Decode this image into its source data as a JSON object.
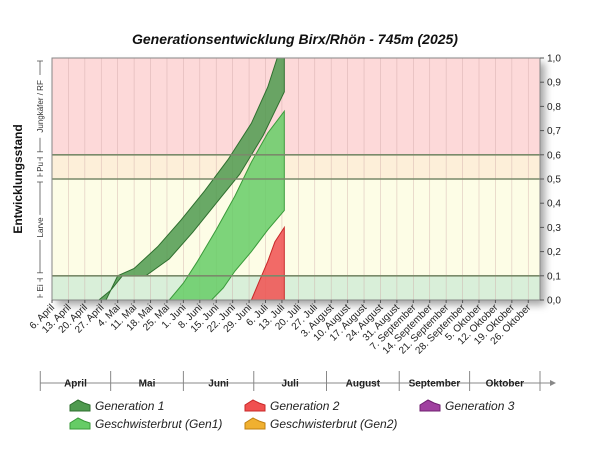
{
  "chart_data": {
    "type": "area",
    "title": "Generationsentwicklung Birx/Rhön - 745m (2025)",
    "ylabel": "Entwicklungsstand",
    "ylim": [
      0,
      1.0
    ],
    "yticks": [
      "0,0",
      "0,1",
      "0,2",
      "0,3",
      "0,4",
      "0,5",
      "0,6",
      "0,7",
      "0,8",
      "0,9",
      "1,0"
    ],
    "x_dates": [
      "6. April",
      "13. April",
      "20. April",
      "27. April",
      "4. Mai",
      "11. Mai",
      "18. Mai",
      "25. Mai",
      "1. Juni",
      "8. Juni",
      "15. Juni",
      "22. Juni",
      "29. Juni",
      "6. Juli",
      "13. Juli",
      "20. Juli",
      "27. Juli",
      "3. August",
      "10. August",
      "17. August",
      "24. August",
      "31. August",
      "7. September",
      "14. September",
      "21. September",
      "28. September",
      "5. Oktober",
      "12. Oktober",
      "19. Oktober",
      "26. Oktober"
    ],
    "months": [
      "April",
      "Mai",
      "Juni",
      "Juli",
      "August",
      "September",
      "Oktober"
    ],
    "stages": [
      {
        "label": "Ei",
        "from": 0.0,
        "to": 0.1,
        "color": "#d9efd9"
      },
      {
        "label": "Larve",
        "from": 0.1,
        "to": 0.5,
        "color": "#fdfde6"
      },
      {
        "label": "Pu",
        "from": 0.5,
        "to": 0.6,
        "color": "#fdefd9"
      },
      {
        "label": "Jungkäfer / RF",
        "from": 0.6,
        "to": 1.0,
        "color": "#fdd9d9"
      }
    ],
    "series": [
      {
        "name": "Generation 1",
        "color": "#4f9a4f",
        "edge": "#2f6f2f",
        "upper": [
          [
            23,
            0.0
          ],
          [
            28,
            0.1
          ],
          [
            35,
            0.13
          ],
          [
            45,
            0.22
          ],
          [
            55,
            0.33
          ],
          [
            65,
            0.45
          ],
          [
            75,
            0.58
          ],
          [
            85,
            0.73
          ],
          [
            92,
            0.88
          ],
          [
            96,
            1.0
          ],
          [
            99,
            1.0
          ]
        ],
        "lower": [
          [
            20,
            0.0
          ],
          [
            25,
            0.04
          ],
          [
            30,
            0.1
          ],
          [
            40,
            0.1
          ],
          [
            50,
            0.17
          ],
          [
            60,
            0.28
          ],
          [
            70,
            0.4
          ],
          [
            80,
            0.52
          ],
          [
            90,
            0.68
          ],
          [
            95,
            0.78
          ],
          [
            99,
            0.86
          ]
        ]
      },
      {
        "name": "Generation 2",
        "color": "#f05050",
        "edge": "#c82828",
        "upper": [
          [
            85,
            0.0
          ],
          [
            88,
            0.07
          ],
          [
            92,
            0.16
          ],
          [
            95,
            0.24
          ],
          [
            99,
            0.3
          ]
        ],
        "lower": [
          [
            90,
            0.0
          ],
          [
            99,
            0.0
          ]
        ]
      },
      {
        "name": "Generation 3",
        "color": "#a040a0",
        "edge": "#702070",
        "upper": [],
        "lower": []
      },
      {
        "name": "Geschwisterbrut (Gen1)",
        "color": "#66cc66",
        "edge": "#3a9a3a",
        "upper": [
          [
            50,
            0.0
          ],
          [
            56,
            0.07
          ],
          [
            62,
            0.16
          ],
          [
            70,
            0.29
          ],
          [
            78,
            0.43
          ],
          [
            85,
            0.57
          ],
          [
            92,
            0.69
          ],
          [
            99,
            0.78
          ]
        ],
        "lower": [
          [
            68,
            0.0
          ],
          [
            73,
            0.05
          ],
          [
            78,
            0.12
          ],
          [
            85,
            0.2
          ],
          [
            92,
            0.29
          ],
          [
            99,
            0.37
          ]
        ]
      },
      {
        "name": "Geschwisterbrut (Gen2)",
        "color": "#f0b030",
        "edge": "#c08010",
        "upper": [],
        "lower": []
      }
    ]
  }
}
